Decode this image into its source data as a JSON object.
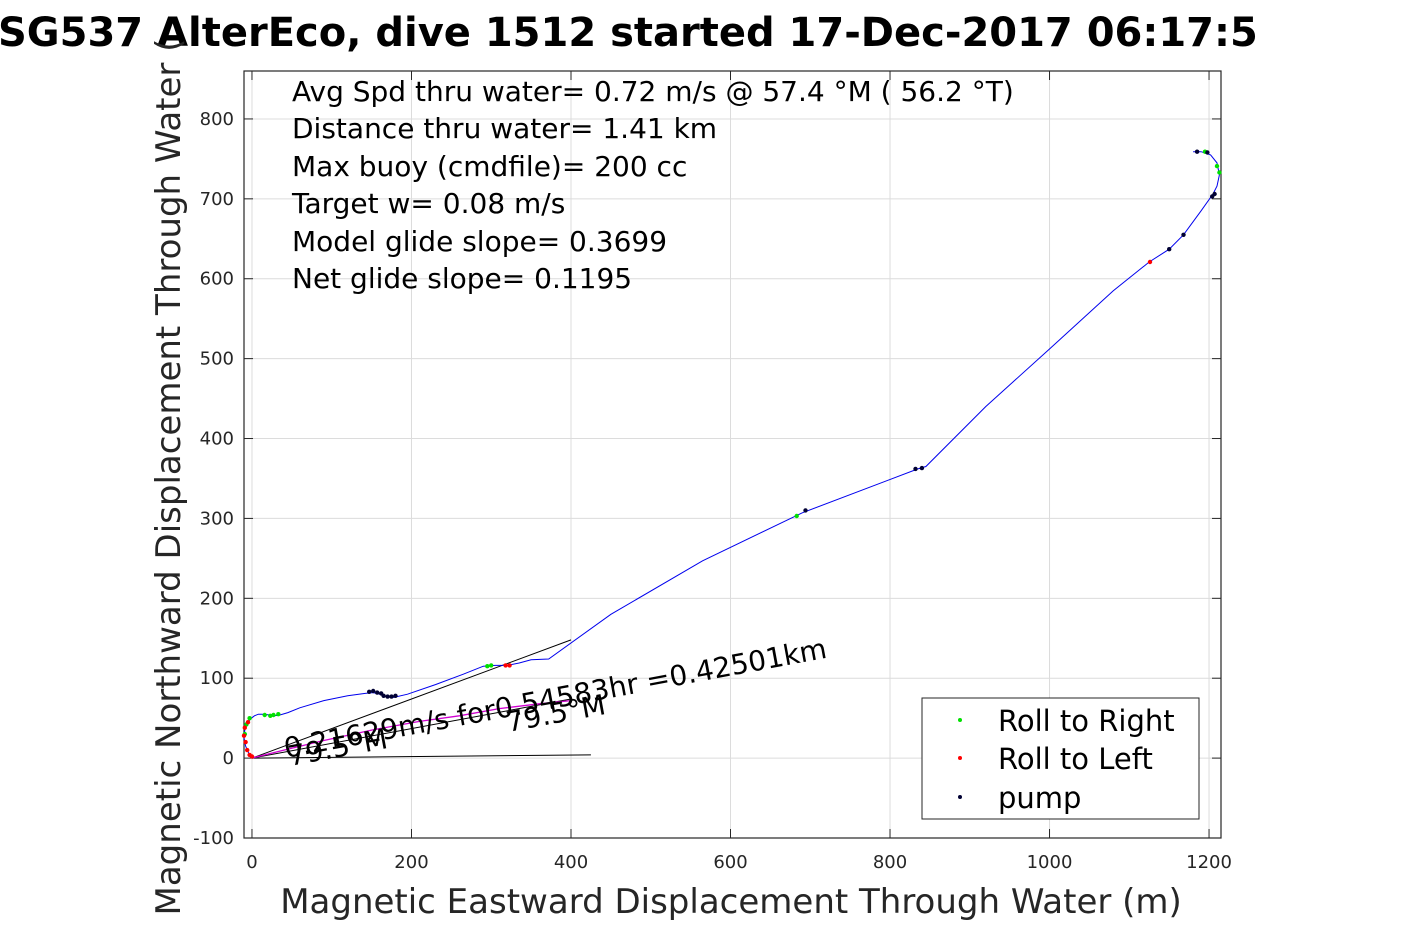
{
  "chart_data": {
    "type": "scatter",
    "title": "SG537 AlterEco, dive 1512 started 17-Dec-2017 06:17:5",
    "xlabel": "Magnetic Eastward Displacement Through Water (m)",
    "ylabel": "Magnetic Northward Displacement Through Water (",
    "xlim": [
      -10,
      1215
    ],
    "ylim": [
      -100,
      860
    ],
    "grid": true,
    "x_ticks": [
      0,
      200,
      400,
      600,
      800,
      1000,
      1200
    ],
    "x_tick_labels": [
      "0",
      "200",
      "400",
      "600",
      "800",
      "1000",
      "1200"
    ],
    "y_ticks": [
      -100,
      0,
      100,
      200,
      300,
      400,
      500,
      600,
      700,
      800
    ],
    "y_tick_labels": [
      "-100",
      "0",
      "100",
      "200",
      "300",
      "400",
      "500",
      "600",
      "700",
      "800"
    ],
    "stats": [
      "Avg Spd thru water=  0.72 m/s @  57.4 °M ( 56.2 °T)",
      "Distance thru water=  1.41 km",
      "Max buoy (cmdfile)= 200 cc",
      "Target w= 0.08 m/s",
      "Model glide slope= 0.3699",
      "Net glide slope= 0.1195"
    ],
    "annotations": {
      "current": "0.21629m/s for0.54583hr =0.42501km",
      "heading_1": "79.5°M",
      "heading_2": "79.5°M"
    },
    "legend": {
      "position": "bottom-right",
      "entries": [
        {
          "label": "Roll to Right",
          "color": "#00e000"
        },
        {
          "label": "Roll to Left",
          "color": "#ff0000"
        },
        {
          "label": "pump",
          "color": "#000033"
        }
      ]
    },
    "track": {
      "color": "#0000ee",
      "points": [
        [
          0,
          0
        ],
        [
          -4,
          6
        ],
        [
          -8,
          15
        ],
        [
          -10,
          25
        ],
        [
          -9,
          35
        ],
        [
          -6,
          43
        ],
        [
          -2,
          49
        ],
        [
          3,
          53
        ],
        [
          8,
          55
        ],
        [
          15,
          55
        ],
        [
          22,
          54
        ],
        [
          28,
          53
        ],
        [
          35,
          54
        ],
        [
          45,
          57
        ],
        [
          60,
          63
        ],
        [
          90,
          72
        ],
        [
          120,
          78
        ],
        [
          142,
          81
        ],
        [
          152,
          82
        ],
        [
          160,
          80
        ],
        [
          168,
          77
        ],
        [
          178,
          76
        ],
        [
          195,
          80
        ],
        [
          230,
          92
        ],
        [
          265,
          105
        ],
        [
          290,
          115
        ],
        [
          305,
          116
        ],
        [
          320,
          116
        ],
        [
          335,
          119
        ],
        [
          350,
          123
        ],
        [
          372,
          124
        ],
        [
          450,
          180
        ],
        [
          565,
          247
        ],
        [
          690,
          307
        ],
        [
          835,
          362
        ],
        [
          845,
          365
        ],
        [
          920,
          440
        ],
        [
          1000,
          512
        ],
        [
          1080,
          585
        ],
        [
          1125,
          621
        ],
        [
          1150,
          637
        ],
        [
          1168,
          655
        ],
        [
          1190,
          685
        ],
        [
          1205,
          706
        ],
        [
          1210,
          716
        ],
        [
          1213,
          730
        ],
        [
          1210,
          745
        ],
        [
          1202,
          755
        ],
        [
          1190,
          759
        ],
        [
          1180,
          759
        ]
      ]
    },
    "current_track": {
      "color": "#d000d0",
      "points": [
        [
          0,
          0
        ],
        [
          40,
          10
        ],
        [
          90,
          22
        ],
        [
          150,
          35
        ],
        [
          210,
          46
        ],
        [
          260,
          53
        ],
        [
          310,
          62
        ],
        [
          360,
          68
        ],
        [
          400,
          72
        ]
      ]
    },
    "reference_lines": [
      {
        "points": [
          [
            0,
            0
          ],
          [
            400,
            148
          ]
        ]
      },
      {
        "points": [
          [
            0,
            0
          ],
          [
            425,
            4
          ]
        ]
      },
      {
        "points": [
          [
            0,
            0
          ],
          [
            400,
            74
          ]
        ]
      }
    ],
    "markers": {
      "roll_right": [
        [
          1195,
          759
        ],
        [
          1210,
          741
        ],
        [
          1213,
          733
        ],
        [
          683,
          303
        ],
        [
          295,
          115
        ],
        [
          300,
          116
        ],
        [
          27,
          54
        ],
        [
          23,
          53
        ],
        [
          33,
          55
        ],
        [
          16,
          54
        ],
        [
          -3,
          50
        ],
        [
          -7,
          42
        ],
        [
          -9,
          30
        ]
      ],
      "roll_left": [
        [
          1126,
          621
        ],
        [
          318,
          116
        ],
        [
          323,
          116
        ],
        [
          -8,
          20
        ],
        [
          -6,
          10
        ],
        [
          -3,
          4
        ],
        [
          0,
          2
        ],
        [
          -10,
          28
        ],
        [
          -9,
          38
        ],
        [
          -5,
          45
        ]
      ],
      "pump": [
        [
          147,
          83
        ],
        [
          152,
          84
        ],
        [
          157,
          82
        ],
        [
          162,
          81
        ],
        [
          165,
          78
        ],
        [
          170,
          77
        ],
        [
          175,
          77
        ],
        [
          180,
          78
        ],
        [
          694,
          310
        ],
        [
          832,
          362
        ],
        [
          840,
          363
        ],
        [
          1150,
          637
        ],
        [
          1168,
          655
        ],
        [
          1204,
          703
        ],
        [
          1207,
          706
        ],
        [
          1185,
          759
        ],
        [
          1198,
          758
        ]
      ]
    }
  }
}
